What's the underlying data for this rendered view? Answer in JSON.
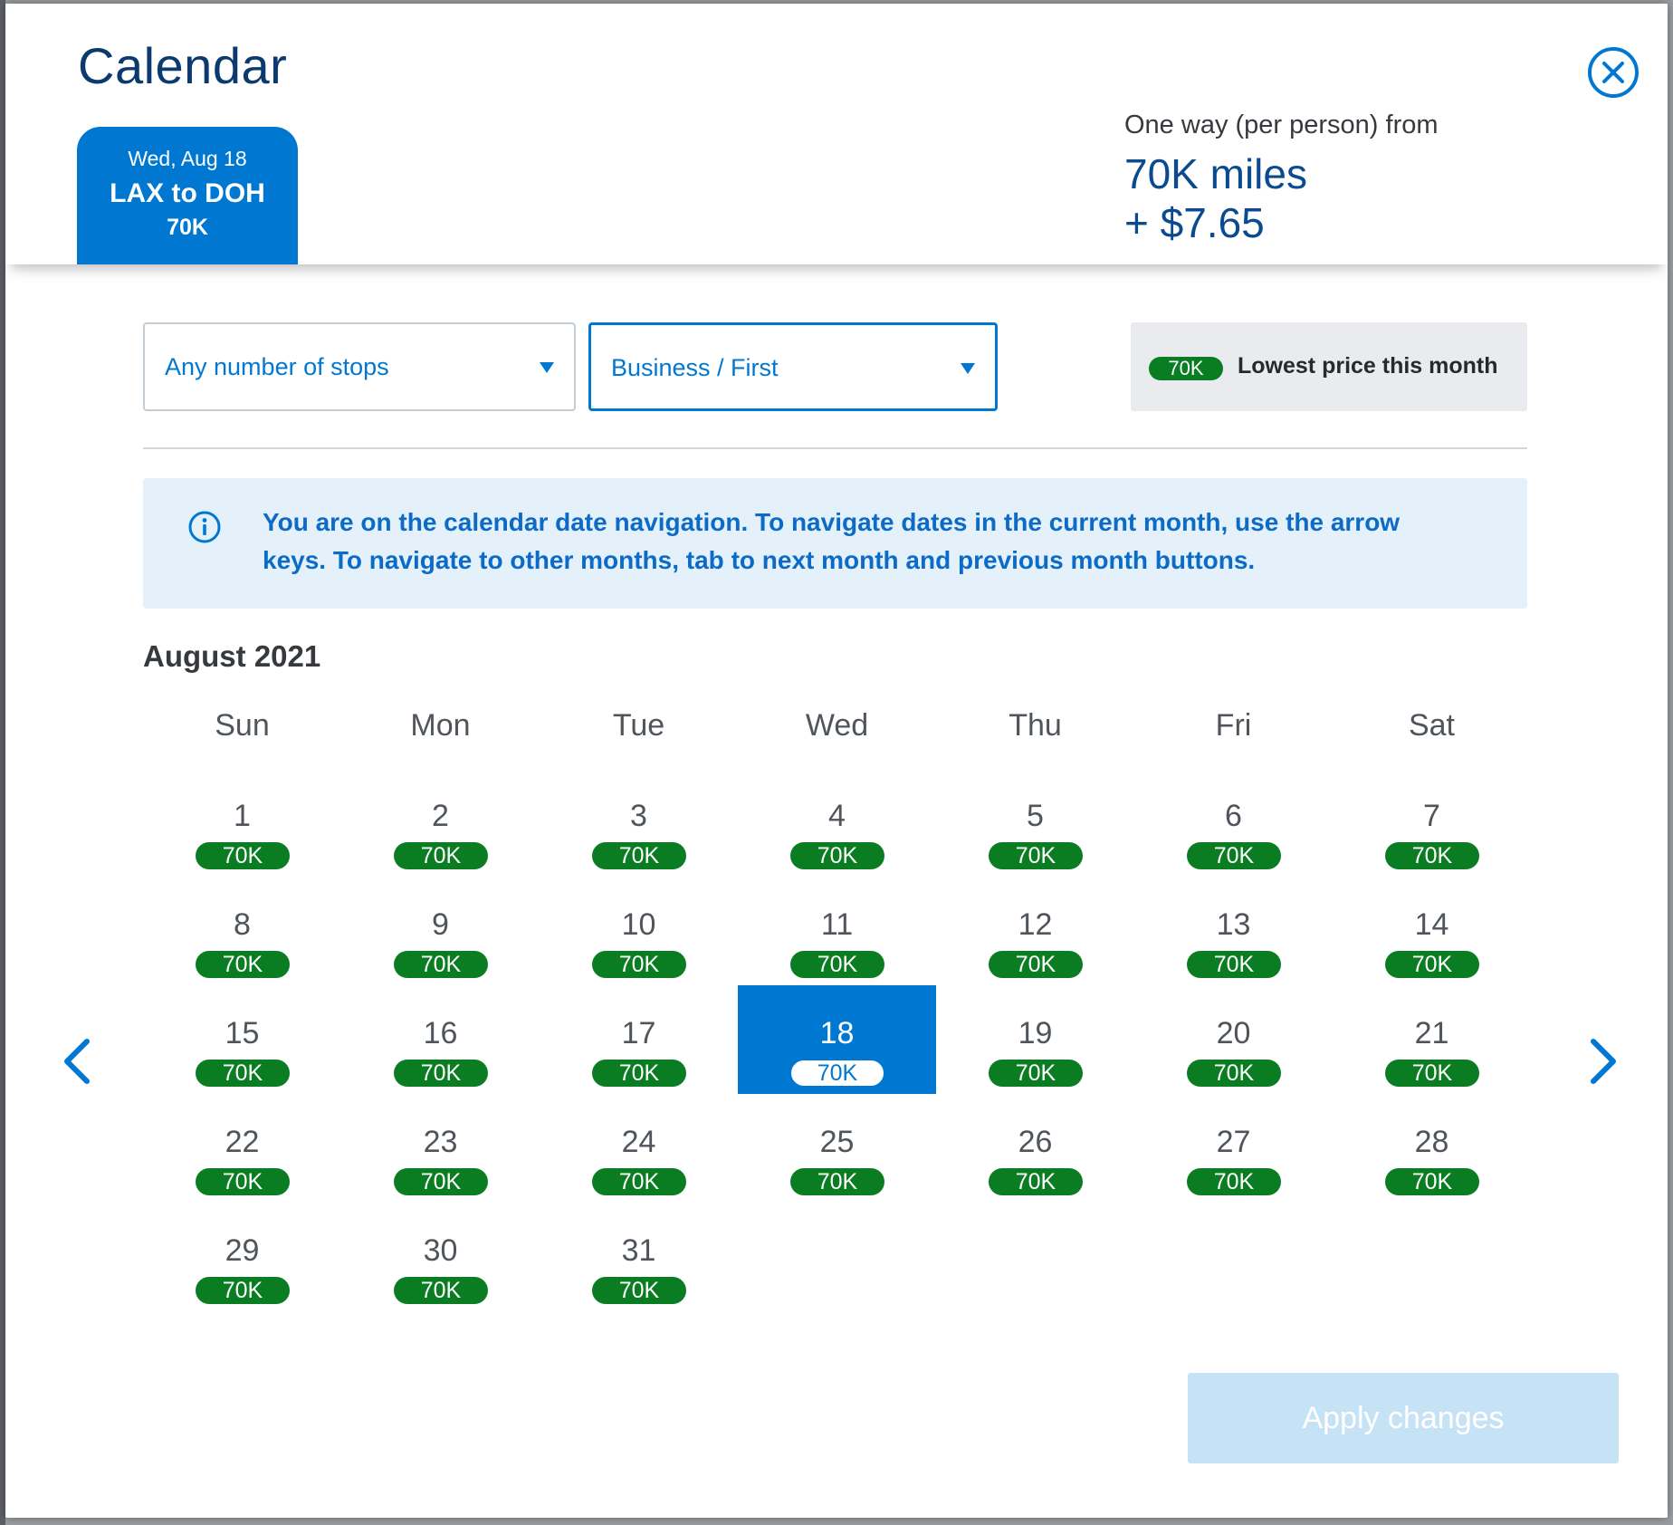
{
  "modal": {
    "title": "Calendar",
    "close_icon": "close-circle-icon"
  },
  "trip_tab": {
    "date": "Wed, Aug 18",
    "route": "LAX to DOH",
    "price": "70K"
  },
  "price_summary": {
    "label": "One way (per person) from",
    "miles": "70K miles",
    "tax": "+ $7.65"
  },
  "filters": {
    "stops": {
      "value": "Any number of stops"
    },
    "cabin": {
      "value": "Business / First"
    }
  },
  "legend": {
    "pill": "70K",
    "label": "Lowest price this month"
  },
  "info": {
    "icon": "info-icon",
    "text": "You are on the calendar date navigation. To navigate dates in the current month, use the arrow keys. To navigate to other months, tab to next month and previous month buttons."
  },
  "calendar": {
    "month": "August 2021",
    "weekdays": [
      "Sun",
      "Mon",
      "Tue",
      "Wed",
      "Thu",
      "Fri",
      "Sat"
    ],
    "first_weekday_index": 0,
    "selected_day": 18,
    "days": [
      {
        "day": "1",
        "price": "70K"
      },
      {
        "day": "2",
        "price": "70K"
      },
      {
        "day": "3",
        "price": "70K"
      },
      {
        "day": "4",
        "price": "70K"
      },
      {
        "day": "5",
        "price": "70K"
      },
      {
        "day": "6",
        "price": "70K"
      },
      {
        "day": "7",
        "price": "70K"
      },
      {
        "day": "8",
        "price": "70K"
      },
      {
        "day": "9",
        "price": "70K"
      },
      {
        "day": "10",
        "price": "70K"
      },
      {
        "day": "11",
        "price": "70K"
      },
      {
        "day": "12",
        "price": "70K"
      },
      {
        "day": "13",
        "price": "70K"
      },
      {
        "day": "14",
        "price": "70K"
      },
      {
        "day": "15",
        "price": "70K"
      },
      {
        "day": "16",
        "price": "70K"
      },
      {
        "day": "17",
        "price": "70K"
      },
      {
        "day": "18",
        "price": "70K"
      },
      {
        "day": "19",
        "price": "70K"
      },
      {
        "day": "20",
        "price": "70K"
      },
      {
        "day": "21",
        "price": "70K"
      },
      {
        "day": "22",
        "price": "70K"
      },
      {
        "day": "23",
        "price": "70K"
      },
      {
        "day": "24",
        "price": "70K"
      },
      {
        "day": "25",
        "price": "70K"
      },
      {
        "day": "26",
        "price": "70K"
      },
      {
        "day": "27",
        "price": "70K"
      },
      {
        "day": "28",
        "price": "70K"
      },
      {
        "day": "29",
        "price": "70K"
      },
      {
        "day": "30",
        "price": "70K"
      },
      {
        "day": "31",
        "price": "70K"
      }
    ]
  },
  "nav": {
    "prev_icon": "chevron-left-icon",
    "next_icon": "chevron-right-icon"
  },
  "actions": {
    "apply_label": "Apply changes"
  },
  "colors": {
    "primary": "#0078d2",
    "price_green": "#0a7d23",
    "title_navy": "#0b3a6e",
    "info_bg": "#e4f1fb",
    "apply_disabled": "#c6e3f6"
  }
}
